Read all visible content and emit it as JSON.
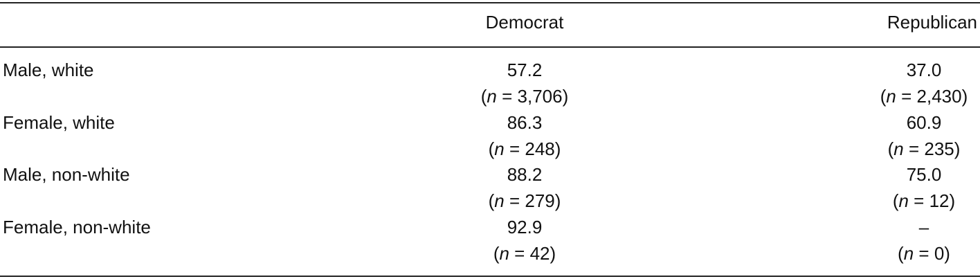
{
  "table": {
    "columns": [
      "Democrat",
      "Republican"
    ],
    "rows": [
      {
        "label": "Male, white",
        "cells": [
          {
            "value": "57.2",
            "n": "(n = 3,706)"
          },
          {
            "value": "37.0",
            "n": "(n = 2,430)"
          }
        ]
      },
      {
        "label": "Female, white",
        "cells": [
          {
            "value": "86.3",
            "n": "(n = 248)"
          },
          {
            "value": "60.9",
            "n": "(n = 235)"
          }
        ]
      },
      {
        "label": "Male, non-white",
        "cells": [
          {
            "value": "88.2",
            "n": "(n = 279)"
          },
          {
            "value": "75.0",
            "n": "(n = 12)"
          }
        ]
      },
      {
        "label": "Female, non-white",
        "cells": [
          {
            "value": "92.9",
            "n": "(n = 42)"
          },
          {
            "value": "–",
            "n": "(n = 0)"
          }
        ]
      }
    ]
  }
}
